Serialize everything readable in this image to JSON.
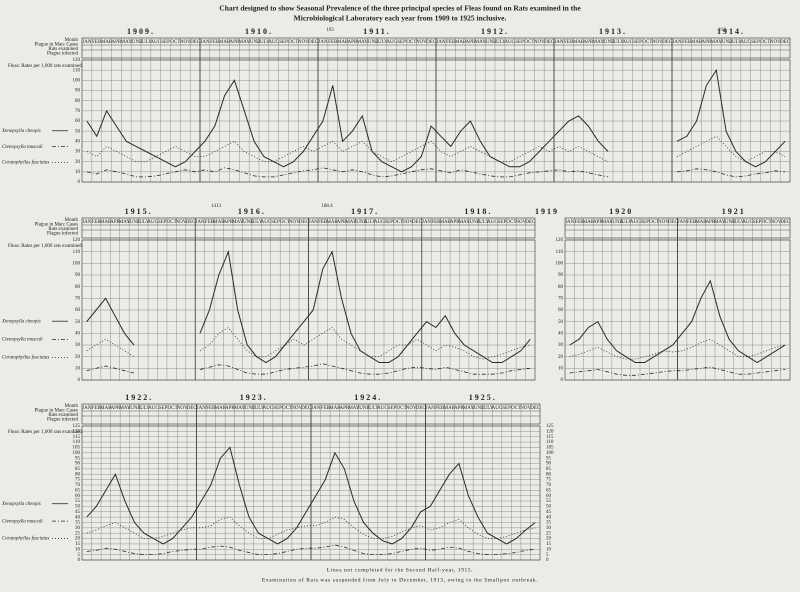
{
  "title": [
    "Chart designed to show Seasonal Prevalence of the three principal species of Fleas found on Rats examined in the",
    "Microbiological Laboratory each year from 1909 to 1925 inclusive."
  ],
  "notes": [
    "Lines not completed for the Second Half-year, 1915.",
    "Examination of Rats was suspended from July to December, 1913, owing to the Smallpox outbreak."
  ],
  "chart_data": [
    {
      "type": "line",
      "years": [
        "1909.",
        "1910.",
        "1911.",
        "1912.",
        "1913.",
        "1914."
      ],
      "row_labels": [
        "Month",
        "Plague in Man: Cases",
        "Rats examined",
        "Plague infected"
      ],
      "fleas_label": "Fleas: Rates per 1,000 rats examined.",
      "annotations": [
        "193",
        "213"
      ],
      "categories": [
        "JAN",
        "FEB",
        "MAR",
        "APR",
        "MAY",
        "JUNE",
        "JULY",
        "AUG",
        "SEP",
        "OCT",
        "NOV",
        "DEC",
        "JAN",
        "FEB",
        "MAR",
        "APR",
        "MAY",
        "JUNE",
        "JULY",
        "AUG",
        "SEP",
        "OCT",
        "NOV",
        "DEC",
        "JAN",
        "FEB",
        "MAR",
        "APR",
        "MAY",
        "JUNE",
        "JULY",
        "AUG",
        "SEP",
        "OCT",
        "NOV",
        "DEC",
        "JAN",
        "FEB",
        "MAR",
        "APR",
        "MAY",
        "JUNE",
        "JULY",
        "AUG",
        "SEP",
        "OCT",
        "NOV",
        "DEC",
        "JAN",
        "FEB",
        "MAR",
        "APR",
        "MAY",
        "JUNE",
        "JULY",
        "AUG",
        "SEP",
        "OCT",
        "NOV",
        "DEC",
        "JAN",
        "FEB",
        "MAR",
        "APR",
        "MAY",
        "JUNE",
        "JULY",
        "AUG",
        "SEP",
        "OCT",
        "NOV",
        "DEC"
      ],
      "ylim": [
        0,
        120
      ],
      "yticks": [
        0,
        10,
        20,
        30,
        40,
        50,
        60,
        70,
        80,
        90,
        100,
        110,
        120
      ],
      "grid": true,
      "series": [
        {
          "name": "Xenopsylla cheopis",
          "color": "#2a2a2a",
          "dash": "none",
          "values": [
            60,
            45,
            70,
            55,
            40,
            35,
            30,
            25,
            20,
            15,
            20,
            30,
            40,
            55,
            85,
            100,
            70,
            40,
            25,
            20,
            15,
            20,
            30,
            45,
            60,
            95,
            40,
            50,
            65,
            30,
            20,
            15,
            10,
            15,
            25,
            55,
            45,
            35,
            50,
            60,
            40,
            25,
            20,
            15,
            15,
            20,
            30,
            40,
            50,
            60,
            65,
            55,
            40,
            30,
            null,
            null,
            null,
            null,
            null,
            null,
            40,
            45,
            60,
            95,
            110,
            50,
            30,
            20,
            15,
            20,
            30,
            40
          ]
        },
        {
          "name": "Ctenopsylla musculi",
          "color": "#2a2a2a",
          "dash": "4 2 1 2",
          "values": [
            10,
            8,
            12,
            10,
            8,
            5,
            5,
            6,
            8,
            10,
            12,
            10,
            12,
            10,
            14,
            12,
            9,
            6,
            5,
            5,
            7,
            9,
            11,
            12,
            14,
            12,
            10,
            12,
            10,
            7,
            5,
            6,
            8,
            10,
            12,
            13,
            11,
            9,
            12,
            10,
            8,
            6,
            5,
            5,
            7,
            9,
            10,
            11,
            12,
            10,
            11,
            9,
            7,
            5,
            null,
            null,
            null,
            null,
            null,
            null,
            10,
            11,
            13,
            12,
            10,
            7,
            5,
            6,
            8,
            9,
            11,
            10
          ]
        },
        {
          "name": "Ceratophyllus fasciatus",
          "color": "#2a2a2a",
          "dash": "1 2",
          "values": [
            30,
            25,
            35,
            30,
            25,
            20,
            20,
            25,
            30,
            35,
            30,
            25,
            25,
            30,
            35,
            40,
            30,
            25,
            20,
            20,
            25,
            30,
            35,
            30,
            35,
            40,
            30,
            35,
            40,
            30,
            25,
            20,
            25,
            30,
            35,
            40,
            30,
            25,
            30,
            35,
            30,
            25,
            20,
            20,
            25,
            30,
            35,
            30,
            35,
            30,
            35,
            30,
            25,
            20,
            null,
            null,
            null,
            null,
            null,
            null,
            25,
            30,
            35,
            40,
            45,
            35,
            25,
            20,
            25,
            30,
            30,
            25
          ]
        }
      ]
    },
    {
      "type": "line",
      "years": [
        "1915.",
        "1916.",
        "1917.",
        "1918."
      ],
      "row_labels": [
        "Month",
        "Plague in Man: Cases",
        "Rats examined",
        "Plague infected"
      ],
      "fleas_label": "Fleas: Rates per 1,000 rats examined.",
      "annotations": [
        "1413",
        "188.4"
      ],
      "categories": [
        "JAN",
        "FEB",
        "MAR",
        "APR",
        "MAY",
        "JUNE",
        "JULY",
        "AUG",
        "SEP",
        "OCT",
        "NOV",
        "DEC",
        "JAN",
        "FEB",
        "MAR",
        "APR",
        "MAY",
        "JUNE",
        "JULY",
        "AUG",
        "SEP",
        "OCT",
        "NOV",
        "DEC",
        "JAN",
        "FEB",
        "MAR",
        "APR",
        "MAY",
        "JUNE",
        "JULY",
        "AUG",
        "SEP",
        "OCT",
        "NOV",
        "DEC",
        "JAN",
        "FEB",
        "MAR",
        "APR",
        "MAY",
        "JUNE",
        "JULY",
        "AUG",
        "SEP",
        "OCT",
        "NOV",
        "DEC"
      ],
      "ylim": [
        0,
        120
      ],
      "yticks": [
        0,
        10,
        20,
        30,
        40,
        50,
        60,
        70,
        80,
        90,
        100,
        110,
        120
      ],
      "grid": true,
      "series": [
        {
          "name": "Xenopsylla cheopis",
          "color": "#2a2a2a",
          "dash": "none",
          "values": [
            50,
            60,
            70,
            55,
            40,
            30,
            null,
            null,
            null,
            null,
            null,
            null,
            40,
            60,
            90,
            110,
            60,
            30,
            20,
            15,
            20,
            30,
            40,
            50,
            60,
            95,
            110,
            70,
            40,
            25,
            20,
            15,
            15,
            20,
            30,
            40,
            50,
            45,
            55,
            40,
            30,
            25,
            20,
            15,
            15,
            20,
            25,
            35
          ]
        },
        {
          "name": "Ctenopsylla musculi",
          "color": "#2a2a2a",
          "dash": "4 2 1 2",
          "values": [
            8,
            10,
            12,
            10,
            8,
            6,
            null,
            null,
            null,
            null,
            null,
            null,
            9,
            11,
            13,
            12,
            9,
            6,
            5,
            5,
            7,
            9,
            10,
            11,
            12,
            14,
            12,
            10,
            8,
            6,
            5,
            5,
            6,
            8,
            10,
            11,
            10,
            9,
            11,
            9,
            7,
            5,
            5,
            5,
            6,
            8,
            9,
            10
          ]
        },
        {
          "name": "Ceratophyllus fasciatus",
          "color": "#2a2a2a",
          "dash": "1 2",
          "values": [
            25,
            30,
            35,
            30,
            25,
            20,
            null,
            null,
            null,
            null,
            null,
            null,
            25,
            30,
            40,
            45,
            35,
            25,
            20,
            20,
            25,
            30,
            35,
            30,
            35,
            40,
            45,
            35,
            30,
            25,
            20,
            20,
            25,
            30,
            30,
            35,
            30,
            25,
            30,
            28,
            25,
            20,
            18,
            20,
            22,
            25,
            28,
            30
          ]
        }
      ]
    },
    {
      "type": "line",
      "years": [
        "1920",
        "1921"
      ],
      "gap_year": "1919",
      "categories": [
        "JAN",
        "FEB",
        "MAR",
        "APR",
        "MAY",
        "JUNE",
        "JULY",
        "AUG",
        "SEP",
        "OCT",
        "NOV",
        "DEC",
        "JAN",
        "FEB",
        "MAR",
        "APR",
        "MAY",
        "JUNE",
        "JULY",
        "AUG",
        "SEP",
        "OCT",
        "NOV",
        "DEC"
      ],
      "ylim": [
        0,
        120
      ],
      "yticks": [
        0,
        10,
        20,
        30,
        40,
        50,
        60,
        70,
        80,
        90,
        100,
        110,
        120
      ],
      "grid": true,
      "series": [
        {
          "name": "Xenopsylla cheopis",
          "color": "#2a2a2a",
          "dash": "none",
          "values": [
            30,
            35,
            45,
            50,
            35,
            25,
            20,
            15,
            15,
            20,
            25,
            30,
            40,
            50,
            70,
            85,
            55,
            35,
            25,
            20,
            15,
            20,
            25,
            30
          ]
        },
        {
          "name": "Ctenopsylla musculi",
          "color": "#2a2a2a",
          "dash": "4 2 1 2",
          "values": [
            6,
            7,
            8,
            9,
            7,
            5,
            4,
            4,
            5,
            6,
            7,
            8,
            8,
            9,
            10,
            11,
            9,
            7,
            5,
            5,
            6,
            7,
            8,
            9
          ]
        },
        {
          "name": "Ceratophyllus fasciatus",
          "color": "#2a2a2a",
          "dash": "1 2",
          "values": [
            20,
            22,
            25,
            28,
            24,
            20,
            18,
            18,
            20,
            22,
            25,
            24,
            25,
            28,
            32,
            35,
            30,
            25,
            20,
            20,
            22,
            25,
            28,
            30
          ]
        }
      ]
    },
    {
      "type": "line",
      "years": [
        "1922.",
        "1923.",
        "1924.",
        "1925."
      ],
      "right_axis": true,
      "row_labels": [
        "Month",
        "Plague in Man: Cases",
        "Rats examined",
        "Plague infected"
      ],
      "fleas_label": "Fleas: Rates per 1,000 rats examined.",
      "categories": [
        "JAN",
        "FEB",
        "MAR",
        "APR",
        "MAY",
        "JUNE",
        "JULY",
        "AUG",
        "SEP",
        "OCT",
        "NOV",
        "DEC",
        "JAN",
        "FEB",
        "MAR",
        "APR",
        "MAY",
        "JUNE",
        "JULY",
        "AUG",
        "SEP",
        "OCT",
        "NOV",
        "DEC",
        "JAN",
        "FEB",
        "MAR",
        "APR",
        "MAY",
        "JUNE",
        "JULY",
        "AUG",
        "SEP",
        "OCT",
        "NOV",
        "DEC",
        "JAN",
        "FEB",
        "MAR",
        "APR",
        "MAY",
        "JUNE",
        "JULY",
        "AUG",
        "SEP",
        "OCT",
        "NOV",
        "DEC"
      ],
      "ylim": [
        0,
        125
      ],
      "yticks": [
        0,
        5,
        10,
        15,
        20,
        25,
        30,
        35,
        40,
        45,
        50,
        55,
        60,
        65,
        70,
        75,
        80,
        85,
        90,
        95,
        100,
        105,
        110,
        115,
        120,
        125
      ],
      "grid": true,
      "series": [
        {
          "name": "Xenopsylla cheopis",
          "color": "#2a2a2a",
          "dash": "none",
          "values": [
            40,
            50,
            65,
            80,
            55,
            35,
            25,
            20,
            15,
            20,
            30,
            40,
            55,
            70,
            95,
            105,
            70,
            40,
            25,
            20,
            15,
            20,
            30,
            45,
            60,
            75,
            100,
            85,
            55,
            35,
            25,
            18,
            15,
            20,
            30,
            45,
            50,
            65,
            80,
            90,
            60,
            40,
            25,
            20,
            15,
            20,
            28,
            35
          ]
        },
        {
          "name": "Ctenopsylla musculi",
          "color": "#2a2a2a",
          "dash": "4 2 1 2",
          "values": [
            8,
            9,
            11,
            10,
            8,
            6,
            5,
            5,
            6,
            8,
            9,
            10,
            10,
            12,
            13,
            12,
            9,
            7,
            5,
            5,
            6,
            8,
            10,
            11,
            11,
            12,
            14,
            12,
            9,
            6,
            5,
            5,
            6,
            8,
            10,
            11,
            9,
            10,
            12,
            11,
            8,
            6,
            5,
            5,
            6,
            7,
            9,
            10
          ]
        },
        {
          "name": "Ceratophyllus fasciatus",
          "color": "#2a2a2a",
          "dash": "1 2",
          "values": [
            25,
            28,
            32,
            35,
            30,
            25,
            20,
            20,
            22,
            25,
            28,
            30,
            30,
            32,
            38,
            40,
            32,
            25,
            20,
            20,
            24,
            28,
            30,
            32,
            32,
            35,
            40,
            38,
            30,
            24,
            20,
            20,
            22,
            26,
            30,
            32,
            28,
            30,
            35,
            38,
            30,
            24,
            20,
            20,
            22,
            25,
            28,
            30
          ]
        }
      ]
    }
  ]
}
